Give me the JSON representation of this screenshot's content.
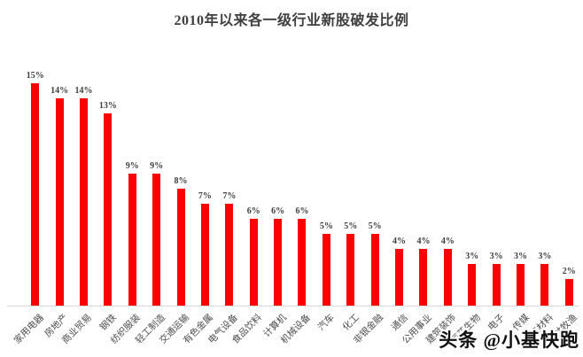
{
  "title": "2010年以来各一级行业新股破发比例",
  "watermark": "头条 @小基快跑",
  "colors": {
    "background": "#ffffff",
    "bar": "#fb0000",
    "title_text": "#3f3f3f",
    "value_label_text": "#3f3f3f",
    "category_label_text": "#4d4d4d",
    "axis_line": "#d9d9d9",
    "watermark_text": "#111111"
  },
  "chart_data": {
    "type": "bar",
    "title": "2010年以来各一级行业新股破发比例",
    "categories": [
      "家用电器",
      "房地产",
      "商业贸易",
      "钢铁",
      "纺织服装",
      "轻工制造",
      "交通运输",
      "有色金属",
      "电气设备",
      "食品饮料",
      "计算机",
      "机械设备",
      "汽车",
      "化工",
      "非银金融",
      "通信",
      "公用事业",
      "建筑装饰",
      "医药生物",
      "电子",
      "传媒",
      "建筑材料",
      "农林牧渔"
    ],
    "values": [
      15,
      14,
      14,
      13,
      9,
      9,
      8,
      7,
      7,
      6,
      6,
      6,
      5,
      5,
      5,
      4,
      4,
      4,
      3,
      3,
      3,
      3,
      2
    ],
    "labels": [
      "15%",
      "14%",
      "14%",
      "13%",
      "9%",
      "9%",
      "8%",
      "7%",
      "7%",
      "6%",
      "6%",
      "6%",
      "5%",
      "5%",
      "5%",
      "4%",
      "4%",
      "4%",
      "3%",
      "3%",
      "3%",
      "3%",
      "2%"
    ],
    "unit": "%",
    "xlabel": "",
    "ylabel": "",
    "ylim": [
      0,
      16
    ],
    "grid": false,
    "legend": "none",
    "bar_color": "#fb0000",
    "data_labels_position": "above-bar",
    "category_label_rotation_deg": -45
  }
}
